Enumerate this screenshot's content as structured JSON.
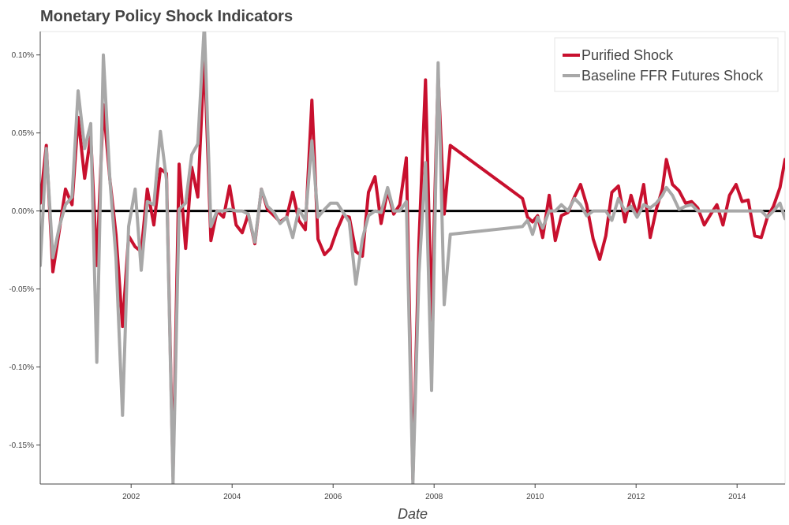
{
  "chart_data": {
    "type": "line",
    "title": "Monetary Policy Shock Indicators",
    "xlabel": "Date",
    "ylabel": "",
    "xlim": [
      2000.2,
      2014.95
    ],
    "ylim": [
      -0.00175,
      0.00115
    ],
    "x_ticks": [
      2002,
      2004,
      2006,
      2008,
      2010,
      2012,
      2014
    ],
    "x_tick_labels": [
      "2002",
      "2004",
      "2006",
      "2008",
      "2010",
      "2012",
      "2014"
    ],
    "y_ticks": [
      -0.0015,
      -0.001,
      -0.0005,
      0,
      0.0005,
      0.001
    ],
    "y_tick_labels": [
      "-0.15%",
      "-0.10%",
      "-0.05%",
      "0.00%",
      "0.05%",
      "0.10%"
    ],
    "grid": false,
    "zero_line": true,
    "legend": {
      "position": "top-right"
    },
    "series": [
      {
        "name": "Purified Shock",
        "color": "#c8102e",
        "points": [
          [
            2000.2,
            5e-05
          ],
          [
            2000.32,
            0.00042
          ],
          [
            2000.45,
            -0.00039
          ],
          [
            2000.58,
            -0.00012
          ],
          [
            2000.7,
            0.00014
          ],
          [
            2000.83,
            4e-05
          ],
          [
            2000.95,
            0.0006
          ],
          [
            2001.08,
            0.00021
          ],
          [
            2001.2,
            0.00048
          ],
          [
            2001.32,
            -0.00035
          ],
          [
            2001.45,
            0.00068
          ],
          [
            2001.58,
            0.0002
          ],
          [
            2001.7,
            -0.00015
          ],
          [
            2001.83,
            -0.00074
          ],
          [
            2001.95,
            -0.00016
          ],
          [
            2002.08,
            -0.00023
          ],
          [
            2002.2,
            -0.00026
          ],
          [
            2002.32,
            0.00014
          ],
          [
            2002.45,
            -9e-05
          ],
          [
            2002.58,
            0.00027
          ],
          [
            2002.7,
            0.00024
          ],
          [
            2002.83,
            -0.0017
          ],
          [
            2002.95,
            0.0003
          ],
          [
            2003.08,
            -0.00024
          ],
          [
            2003.2,
            0.00028
          ],
          [
            2003.32,
            9e-05
          ],
          [
            2003.45,
            0.001
          ],
          [
            2003.58,
            -0.00019
          ],
          [
            2003.7,
            0.0
          ],
          [
            2003.83,
            -4e-05
          ],
          [
            2003.95,
            0.00016
          ],
          [
            2004.08,
            -9e-05
          ],
          [
            2004.2,
            -0.00014
          ],
          [
            2004.32,
            -2e-05
          ],
          [
            2004.45,
            -0.00021
          ],
          [
            2004.58,
            0.00014
          ],
          [
            2004.7,
            1e-05
          ],
          [
            2004.83,
            -3e-05
          ],
          [
            2004.95,
            -7e-05
          ],
          [
            2005.08,
            -4e-05
          ],
          [
            2005.2,
            0.00012
          ],
          [
            2005.32,
            -6e-05
          ],
          [
            2005.45,
            -0.00012
          ],
          [
            2005.58,
            0.00071
          ],
          [
            2005.7,
            -0.00018
          ],
          [
            2005.83,
            -0.00028
          ],
          [
            2005.95,
            -0.00024
          ],
          [
            2006.08,
            -0.00012
          ],
          [
            2006.2,
            -3e-05
          ],
          [
            2006.32,
            -4e-05
          ],
          [
            2006.45,
            -0.00026
          ],
          [
            2006.58,
            -0.00029
          ],
          [
            2006.7,
            0.00012
          ],
          [
            2006.83,
            0.00022
          ],
          [
            2006.95,
            -8e-05
          ],
          [
            2007.08,
            0.00013
          ],
          [
            2007.2,
            -2e-05
          ],
          [
            2007.32,
            4e-05
          ],
          [
            2007.45,
            0.00034
          ],
          [
            2007.58,
            -0.00172
          ],
          [
            2007.7,
            -0.0002
          ],
          [
            2007.83,
            0.00084
          ],
          [
            2007.95,
            -0.0007
          ],
          [
            2008.08,
            0.00088
          ],
          [
            2008.2,
            -2e-05
          ],
          [
            2008.32,
            0.00042
          ],
          [
            2009.75,
            8e-05
          ],
          [
            2009.85,
            -4e-05
          ],
          [
            2009.95,
            -7e-05
          ],
          [
            2010.05,
            -3e-05
          ],
          [
            2010.15,
            -0.00017
          ],
          [
            2010.28,
            0.0001
          ],
          [
            2010.4,
            -0.00019
          ],
          [
            2010.52,
            -3e-05
          ],
          [
            2010.65,
            -1e-05
          ],
          [
            2010.78,
            9e-05
          ],
          [
            2010.9,
            0.00017
          ],
          [
            2011.02,
            4e-05
          ],
          [
            2011.15,
            -0.00018
          ],
          [
            2011.28,
            -0.00031
          ],
          [
            2011.4,
            -0.00016
          ],
          [
            2011.52,
            0.00012
          ],
          [
            2011.65,
            0.00016
          ],
          [
            2011.78,
            -7e-05
          ],
          [
            2011.9,
            0.0001
          ],
          [
            2012.02,
            -3e-05
          ],
          [
            2012.15,
            0.00017
          ],
          [
            2012.28,
            -0.00017
          ],
          [
            2012.4,
            1e-05
          ],
          [
            2012.52,
            0.00014
          ],
          [
            2012.6,
            0.00033
          ],
          [
            2012.72,
            0.00017
          ],
          [
            2012.85,
            0.00013
          ],
          [
            2012.98,
            5e-05
          ],
          [
            2013.1,
            6e-05
          ],
          [
            2013.22,
            2e-05
          ],
          [
            2013.35,
            -9e-05
          ],
          [
            2013.48,
            -2e-05
          ],
          [
            2013.6,
            4e-05
          ],
          [
            2013.72,
            -9e-05
          ],
          [
            2013.85,
            0.0001
          ],
          [
            2013.98,
            0.00017
          ],
          [
            2014.1,
            6e-05
          ],
          [
            2014.22,
            7e-05
          ],
          [
            2014.35,
            -0.00016
          ],
          [
            2014.48,
            -0.00017
          ],
          [
            2014.6,
            -4e-05
          ],
          [
            2014.72,
            3e-05
          ],
          [
            2014.85,
            0.00015
          ],
          [
            2014.95,
            0.00033
          ]
        ]
      },
      {
        "name": "Baseline FFR Futures Shock",
        "color": "#a8a8a8",
        "points": [
          [
            2000.2,
            -0.00035
          ],
          [
            2000.32,
            0.0004
          ],
          [
            2000.45,
            -0.0003
          ],
          [
            2000.58,
            -0.0001
          ],
          [
            2000.7,
            4e-05
          ],
          [
            2000.83,
            9e-05
          ],
          [
            2000.95,
            0.00077
          ],
          [
            2001.08,
            0.0004
          ],
          [
            2001.2,
            0.00056
          ],
          [
            2001.32,
            -0.00097
          ],
          [
            2001.45,
            0.001
          ],
          [
            2001.58,
            0.0002
          ],
          [
            2001.7,
            -0.0003
          ],
          [
            2001.83,
            -0.00131
          ],
          [
            2001.95,
            -0.0001
          ],
          [
            2002.08,
            0.00014
          ],
          [
            2002.2,
            -0.00038
          ],
          [
            2002.32,
            6e-05
          ],
          [
            2002.45,
            4e-05
          ],
          [
            2002.58,
            0.00051
          ],
          [
            2002.7,
            0.0002
          ],
          [
            2002.83,
            -0.00175
          ],
          [
            2002.95,
            1e-05
          ],
          [
            2003.08,
            5e-05
          ],
          [
            2003.2,
            0.00036
          ],
          [
            2003.32,
            0.00043
          ],
          [
            2003.45,
            0.0012
          ],
          [
            2003.58,
            -0.0001
          ],
          [
            2003.7,
            0.0
          ],
          [
            2003.83,
            0.0
          ],
          [
            2003.95,
            1e-05
          ],
          [
            2004.08,
            0.0
          ],
          [
            2004.2,
            0.0
          ],
          [
            2004.32,
            -2e-05
          ],
          [
            2004.45,
            -0.0002
          ],
          [
            2004.58,
            0.00014
          ],
          [
            2004.7,
            3e-05
          ],
          [
            2004.83,
            -1e-05
          ],
          [
            2004.95,
            -8e-05
          ],
          [
            2005.08,
            -4e-05
          ],
          [
            2005.2,
            -0.00017
          ],
          [
            2005.32,
            1e-05
          ],
          [
            2005.45,
            -6e-05
          ],
          [
            2005.58,
            0.00045
          ],
          [
            2005.7,
            -4e-05
          ],
          [
            2005.83,
            1e-05
          ],
          [
            2005.95,
            5e-05
          ],
          [
            2006.08,
            5e-05
          ],
          [
            2006.2,
            -1e-05
          ],
          [
            2006.32,
            -7e-05
          ],
          [
            2006.45,
            -0.00047
          ],
          [
            2006.58,
            -0.00018
          ],
          [
            2006.7,
            -3e-05
          ],
          [
            2006.83,
            0.0
          ],
          [
            2006.95,
            -1e-05
          ],
          [
            2007.08,
            0.00015
          ],
          [
            2007.2,
            0.0
          ],
          [
            2007.32,
            0.0
          ],
          [
            2007.45,
            6e-05
          ],
          [
            2007.58,
            -0.00175
          ],
          [
            2007.7,
            -0.0004
          ],
          [
            2007.83,
            0.00031
          ],
          [
            2007.95,
            -0.00115
          ],
          [
            2008.08,
            0.00095
          ],
          [
            2008.2,
            -0.0006
          ],
          [
            2008.32,
            -0.00015
          ],
          [
            2009.75,
            -0.0001
          ],
          [
            2009.85,
            -6e-05
          ],
          [
            2009.95,
            -0.00015
          ],
          [
            2010.05,
            -4e-05
          ],
          [
            2010.15,
            -0.00011
          ],
          [
            2010.28,
            0.0
          ],
          [
            2010.4,
            0.0
          ],
          [
            2010.52,
            4e-05
          ],
          [
            2010.65,
            0.0
          ],
          [
            2010.78,
            8e-05
          ],
          [
            2010.9,
            4e-05
          ],
          [
            2011.02,
            -3e-05
          ],
          [
            2011.15,
            0.0
          ],
          [
            2011.28,
            0.0
          ],
          [
            2011.4,
            0.0
          ],
          [
            2011.52,
            -6e-05
          ],
          [
            2011.65,
            8e-05
          ],
          [
            2011.78,
            0.0
          ],
          [
            2011.9,
            3e-05
          ],
          [
            2012.02,
            -4e-05
          ],
          [
            2012.15,
            4e-05
          ],
          [
            2012.28,
            2e-05
          ],
          [
            2012.4,
            5e-05
          ],
          [
            2012.52,
            0.0001
          ],
          [
            2012.6,
            0.00015
          ],
          [
            2012.72,
            0.0001
          ],
          [
            2012.85,
            1e-05
          ],
          [
            2012.98,
            3e-05
          ],
          [
            2013.1,
            4e-05
          ],
          [
            2013.22,
            0.0
          ],
          [
            2013.35,
            0.0
          ],
          [
            2013.48,
            0.0
          ],
          [
            2013.6,
            0.0
          ],
          [
            2013.72,
            0.0
          ],
          [
            2013.85,
            0.0
          ],
          [
            2013.98,
            0.0
          ],
          [
            2014.1,
            0.0
          ],
          [
            2014.22,
            0.0
          ],
          [
            2014.35,
            0.0
          ],
          [
            2014.48,
            0.0
          ],
          [
            2014.6,
            -4e-05
          ],
          [
            2014.72,
            0.0
          ],
          [
            2014.85,
            5e-05
          ],
          [
            2014.95,
            -5e-05
          ]
        ]
      }
    ]
  }
}
